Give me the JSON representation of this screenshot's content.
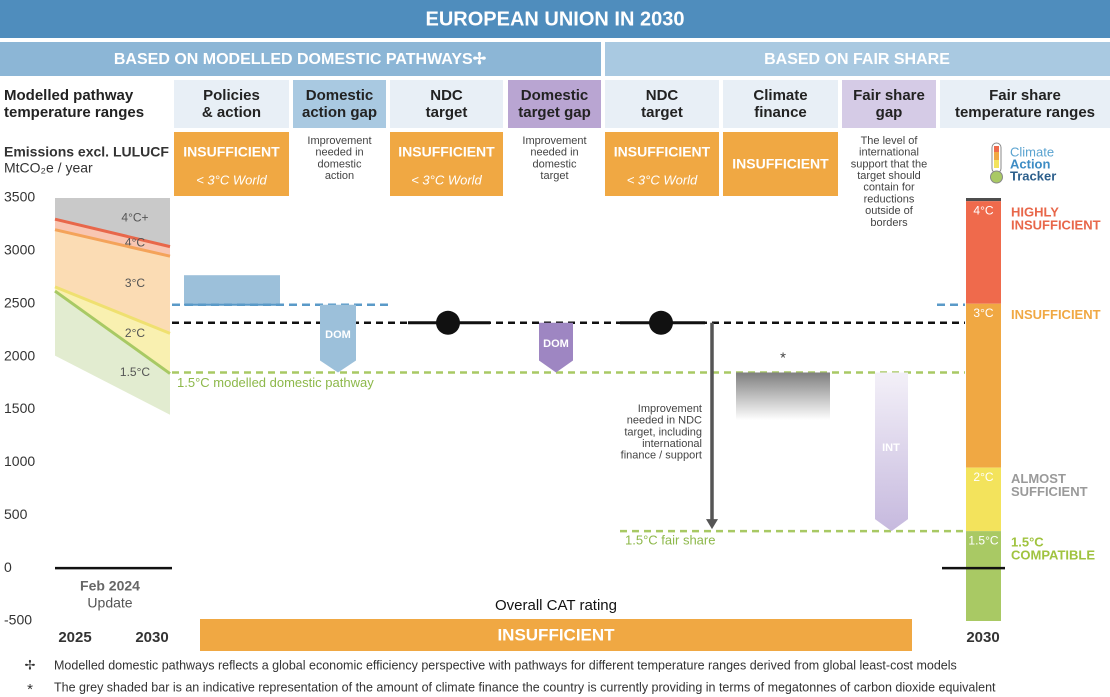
{
  "chart_data": {
    "type": "cat-rating",
    "title": "EUROPEAN UNION IN 2030",
    "sections": [
      "BASED ON MODELLED DOMESTIC PATHWAYS✢",
      "BASED ON FAIR SHARE"
    ],
    "columns": [
      {
        "header": [
          "Modelled pathway",
          "temperature ranges"
        ]
      },
      {
        "header": [
          "Policies",
          "& action"
        ],
        "rating": "INSUFFICIENT",
        "world": "< 3°C World"
      },
      {
        "header": [
          "Domestic",
          "action gap"
        ],
        "note": [
          "Improvement",
          "needed in",
          "domestic",
          "action"
        ]
      },
      {
        "header": [
          "NDC",
          "target"
        ],
        "rating": "INSUFFICIENT",
        "world": "< 3°C World"
      },
      {
        "header": [
          "Domestic",
          "target gap"
        ],
        "note": [
          "Improvement",
          "needed in",
          "domestic",
          "target"
        ]
      },
      {
        "header": [
          "NDC",
          "target"
        ],
        "rating": "INSUFFICIENT",
        "world": "< 3°C World"
      },
      {
        "header": [
          "Climate",
          "finance"
        ],
        "rating": "INSUFFICIENT"
      },
      {
        "header": [
          "Fair share",
          "gap"
        ],
        "note": [
          "The level of",
          "international",
          "support that the",
          "target should",
          "contain for",
          "reductions",
          "outside of",
          "borders"
        ]
      },
      {
        "header": [
          "Fair share",
          "temperature ranges"
        ]
      }
    ],
    "y_label": "Emissions excl. LULUCF",
    "y_unit": "MtCO₂e / year",
    "ylim": [
      -500,
      3500
    ],
    "yticks": [
      3500,
      3000,
      2500,
      2000,
      1500,
      1000,
      500,
      0,
      -500
    ],
    "x": [
      2025,
      2030
    ],
    "pathways": [
      {
        "name": "4°C+",
        "color": "#b5b5b5",
        "fill": "#c9c9c9",
        "upper": [
          3500,
          3500
        ],
        "lower": [
          3300,
          3040
        ]
      },
      {
        "name": "4°C",
        "color": "#e8674a",
        "fill": "#f8c6b2",
        "upper": [
          3300,
          3040
        ],
        "lower": [
          3200,
          2950
        ]
      },
      {
        "name": "3°C",
        "color": "#f4a35a",
        "fill": "#fbdcb4",
        "upper": [
          3200,
          2950
        ],
        "lower": [
          2660,
          2220
        ]
      },
      {
        "name": "2°C",
        "color": "#efe070",
        "fill": "#f9f0b0",
        "upper": [
          2660,
          2220
        ],
        "lower": [
          2620,
          1840
        ]
      },
      {
        "name": "1.5°C",
        "color": "#a8c964",
        "fill": "#e2ecd0",
        "upper": [
          2620,
          1840
        ],
        "lower": [
          2010,
          1450
        ]
      }
    ],
    "policies_range": [
      2490,
      2770
    ],
    "ndc_target": 2320,
    "domestic_pathway": {
      "label": "1.5°C modelled domestic pathway",
      "value": 1850
    },
    "fair_share": {
      "label": "1.5°C fair share",
      "value": 350
    },
    "dom_label": "DOM",
    "int_label": "INT",
    "climate_finance": [
      1400,
      1850
    ],
    "finance_note": "*",
    "improvement_note": [
      "Improvement",
      "needed in NDC",
      "target, including",
      "international",
      "finance /  support"
    ],
    "fair_share_ranges": [
      {
        "color": "#4d4d4d",
        "range": [
          3470,
          3500
        ]
      },
      {
        "name": "4°C",
        "color": "#ef6a4c",
        "range": [
          2500,
          3470
        ],
        "rating": [
          "HIGHLY",
          "INSUFFICIENT"
        ],
        "rating_color": "#e8674a"
      },
      {
        "name": "3°C",
        "color": "#f0a843",
        "range": [
          950,
          2500
        ],
        "rating": [
          "INSUFFICIENT"
        ],
        "rating_color": "#f0a843"
      },
      {
        "name": "2°C",
        "color": "#f3e35c",
        "range": [
          350,
          950
        ],
        "rating": [
          "ALMOST",
          "SUFFICIENT"
        ],
        "rating_color": "#9a9a9a"
      },
      {
        "name": "1.5°C",
        "color": "#a9c964",
        "range": [
          -500,
          350
        ],
        "rating": [
          "1.5°C",
          "COMPATIBLE"
        ],
        "rating_color": "#a0c33f"
      }
    ],
    "update": [
      "Feb 2024",
      "Update"
    ],
    "overall_label": "Overall CAT rating",
    "overall": "INSUFFICIENT",
    "logo": [
      "Climate",
      "Action",
      "Tracker"
    ],
    "footnotes": [
      {
        "mark": "✢",
        "text": "Modelled domestic pathways reflects a global economic efficiency perspective with pathways for different temperature ranges derived from global least-cost models"
      },
      {
        "mark": "*",
        "text": "The grey shaded bar is an indicative representation of the amount of climate finance the country is currently providing in terms of megatonnes of carbon dioxide equivalent"
      }
    ]
  }
}
